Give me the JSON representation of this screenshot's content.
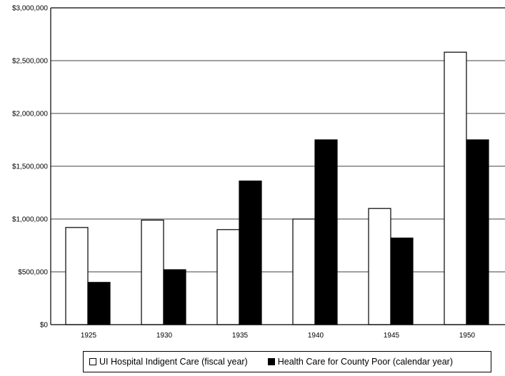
{
  "chart_data": {
    "type": "bar",
    "title": "",
    "xlabel": "",
    "ylabel": "",
    "categories": [
      "1925",
      "1930",
      "1935",
      "1940",
      "1945",
      "1950"
    ],
    "series": [
      {
        "name": "UI Hospital Indigent Care (fiscal year)",
        "color": "#ffffff",
        "values": [
          920000,
          990000,
          900000,
          1000000,
          1100000,
          2580000
        ]
      },
      {
        "name": "Health Care for County Poor (calendar year)",
        "color": "#000000",
        "values": [
          400000,
          520000,
          1360000,
          1750000,
          820000,
          1750000
        ]
      }
    ],
    "ylim": [
      0,
      3000000
    ],
    "yticks": [
      0,
      500000,
      1000000,
      1500000,
      2000000,
      2500000,
      3000000
    ],
    "ytick_labels": [
      "$0",
      "$500,000",
      "$1,000,000",
      "$1,500,000",
      "$2,000,000",
      "$2,500,000",
      "$3,000,000"
    ],
    "grid": true,
    "legend_position": "bottom"
  }
}
